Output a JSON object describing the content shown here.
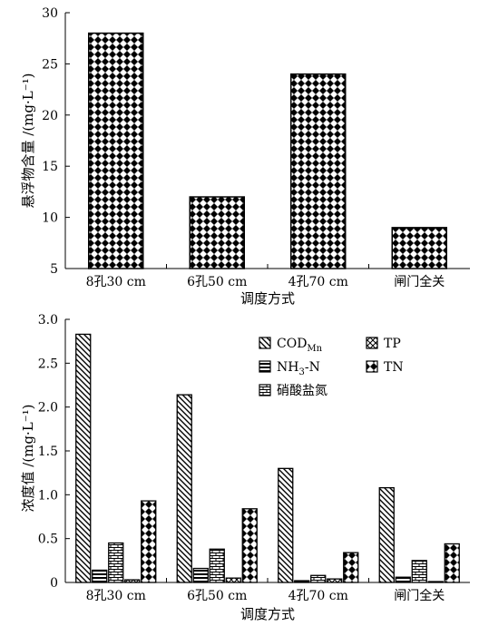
{
  "chart_data": [
    {
      "type": "bar",
      "categories": [
        "8孔30 cm",
        "6孔50 cm",
        "4孔70 cm",
        "闸门全关"
      ],
      "series": [
        {
          "values": [
            28,
            12,
            24,
            9
          ]
        }
      ],
      "xlabel": "调度方式",
      "ylabel": "悬浮物含量 /(mg·L⁻¹)",
      "ylim": [
        5,
        30
      ],
      "yticks": [
        "5",
        "10",
        "15",
        "20",
        "25",
        "30"
      ],
      "grid": false,
      "pattern": "diamond-check"
    },
    {
      "type": "bar",
      "categories": [
        "8孔30 cm",
        "6孔50 cm",
        "4孔70 cm",
        "闸门全关"
      ],
      "series": [
        {
          "name": "COD",
          "name_sub": "Mn",
          "pattern": "diagonal",
          "values": [
            2.83,
            2.14,
            1.3,
            1.08
          ]
        },
        {
          "name": "NH",
          "name_sub": "3",
          "name_tail": "-N",
          "pattern": "horizontal",
          "values": [
            0.14,
            0.16,
            0.02,
            0.06
          ]
        },
        {
          "name": "硝酸盐氮",
          "pattern": "brick",
          "values": [
            0.45,
            0.38,
            0.08,
            0.25
          ]
        },
        {
          "name": "TP",
          "pattern": "cross",
          "values": [
            0.03,
            0.05,
            0.04,
            0.01
          ]
        },
        {
          "name": "TN",
          "pattern": "diamond-check",
          "values": [
            0.93,
            0.84,
            0.34,
            0.44
          ]
        }
      ],
      "xlabel": "调度方式",
      "ylabel": "浓度值 /(mg·L⁻¹)",
      "ylim": [
        0,
        3.0
      ],
      "yticks": [
        "0",
        "0.5",
        "1.0",
        "1.5",
        "2.0",
        "2.5",
        "3.0"
      ],
      "grid": false,
      "legend_position": "top-right"
    }
  ]
}
